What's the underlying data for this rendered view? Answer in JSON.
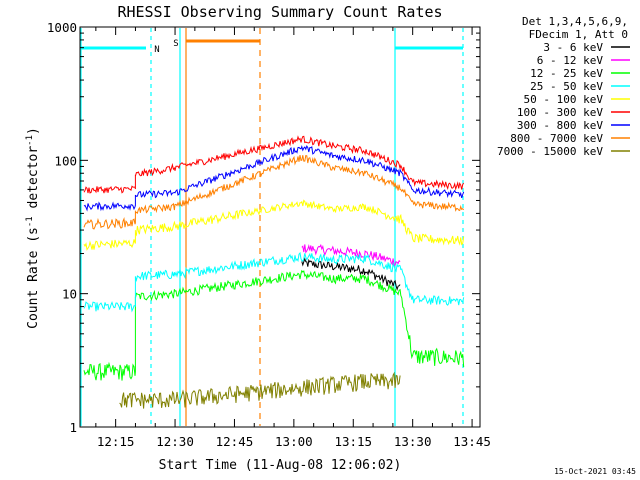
{
  "chart_data": {
    "type": "line",
    "title": "RHESSI Observing Summary Count Rates",
    "xlabel": "Start Time (11-Aug-08 12:06:02)",
    "ylabel_main": "Count Rate (s",
    "ylabel_sup1": "-1",
    "ylabel_mid": " detector",
    "ylabel_sup2": "-1",
    "ylabel_end": ")",
    "yscale": "log",
    "ylim": [
      1,
      1000
    ],
    "xlim": [
      "12:06",
      "13:47"
    ],
    "x_ticks": [
      "12:15",
      "12:30",
      "12:45",
      "13:00",
      "13:15",
      "13:30",
      "13:45"
    ],
    "y_ticks": [
      "1",
      "10",
      "100",
      "1000"
    ],
    "legend": {
      "placement": "right",
      "header1": "Det 1,3,4,5,6,9,",
      "header2": "FDecim 1, Att 0"
    },
    "annotations": {
      "night_label": "N",
      "saa_label": "S",
      "timestamp": "15-Oct-2021 03:45"
    },
    "series": [
      {
        "name": "3 - 6 keV",
        "color": "#000000",
        "points": [
          [
            "12:16",
            0
          ],
          [
            "12:30",
            0
          ],
          [
            "13:02",
            17
          ],
          [
            "13:10",
            16
          ],
          [
            "13:18",
            15
          ],
          [
            "13:27",
            11
          ]
        ]
      },
      {
        "name": "6 - 12 keV",
        "color": "#ff00ff",
        "points": [
          [
            "12:16",
            0
          ],
          [
            "12:30",
            0
          ],
          [
            "13:02",
            22
          ],
          [
            "13:10",
            21
          ],
          [
            "13:18",
            20
          ],
          [
            "13:27",
            17
          ]
        ]
      },
      {
        "name": "12 - 25 keV",
        "color": "#00ff00",
        "points": [
          [
            "12:07",
            2.6
          ],
          [
            "12:20",
            2.6
          ],
          [
            "12:20",
            9.5
          ],
          [
            "12:30",
            10
          ],
          [
            "13:02",
            14
          ],
          [
            "13:10",
            13
          ],
          [
            "13:18",
            13
          ],
          [
            "13:27",
            10
          ],
          [
            "13:30",
            3.4
          ],
          [
            "13:43",
            3.3
          ]
        ]
      },
      {
        "name": "25 - 50 keV",
        "color": "#00ffff",
        "points": [
          [
            "12:07",
            8
          ],
          [
            "12:20",
            8
          ],
          [
            "12:20",
            13.5
          ],
          [
            "12:30",
            14
          ],
          [
            "13:02",
            19
          ],
          [
            "13:10",
            18
          ],
          [
            "13:18",
            18.5
          ],
          [
            "13:27",
            15
          ],
          [
            "13:30",
            9
          ],
          [
            "13:43",
            8.8
          ]
        ]
      },
      {
        "name": "50 - 100 keV",
        "color": "#ffff00",
        "points": [
          [
            "12:07",
            23
          ],
          [
            "12:20",
            24
          ],
          [
            "12:20",
            30
          ],
          [
            "12:30",
            32
          ],
          [
            "13:02",
            48
          ],
          [
            "13:10",
            43
          ],
          [
            "13:18",
            45
          ],
          [
            "13:27",
            36
          ],
          [
            "13:30",
            26
          ],
          [
            "13:43",
            25
          ]
        ]
      },
      {
        "name": "100 - 300 keV",
        "color": "#ff0000",
        "points": [
          [
            "12:07",
            60
          ],
          [
            "12:20",
            61
          ],
          [
            "12:20",
            78
          ],
          [
            "12:30",
            88
          ],
          [
            "13:02",
            145
          ],
          [
            "13:10",
            128
          ],
          [
            "13:18",
            118
          ],
          [
            "13:27",
            92
          ],
          [
            "13:30",
            68
          ],
          [
            "13:43",
            64
          ]
        ]
      },
      {
        "name": "300 - 800 keV",
        "color": "#0000ff",
        "points": [
          [
            "12:07",
            45
          ],
          [
            "12:20",
            46
          ],
          [
            "12:20",
            55
          ],
          [
            "12:30",
            57
          ],
          [
            "13:02",
            125
          ],
          [
            "13:10",
            108
          ],
          [
            "13:18",
            100
          ],
          [
            "13:27",
            80
          ],
          [
            "13:30",
            60
          ],
          [
            "13:43",
            55
          ]
        ]
      },
      {
        "name": "800 - 7000 keV",
        "color": "#ff8000",
        "points": [
          [
            "12:07",
            33
          ],
          [
            "12:20",
            34
          ],
          [
            "12:20",
            42
          ],
          [
            "12:30",
            45
          ],
          [
            "13:02",
            105
          ],
          [
            "13:10",
            88
          ],
          [
            "13:18",
            80
          ],
          [
            "13:27",
            62
          ],
          [
            "13:30",
            47
          ],
          [
            "13:43",
            44
          ]
        ]
      },
      {
        "name": "7000 - 15000 keV",
        "color": "#808000",
        "points": [
          [
            "12:16",
            1.6
          ],
          [
            "12:30",
            1.6
          ],
          [
            "13:18",
            2.2
          ],
          [
            "13:27",
            2.2
          ]
        ]
      }
    ]
  }
}
